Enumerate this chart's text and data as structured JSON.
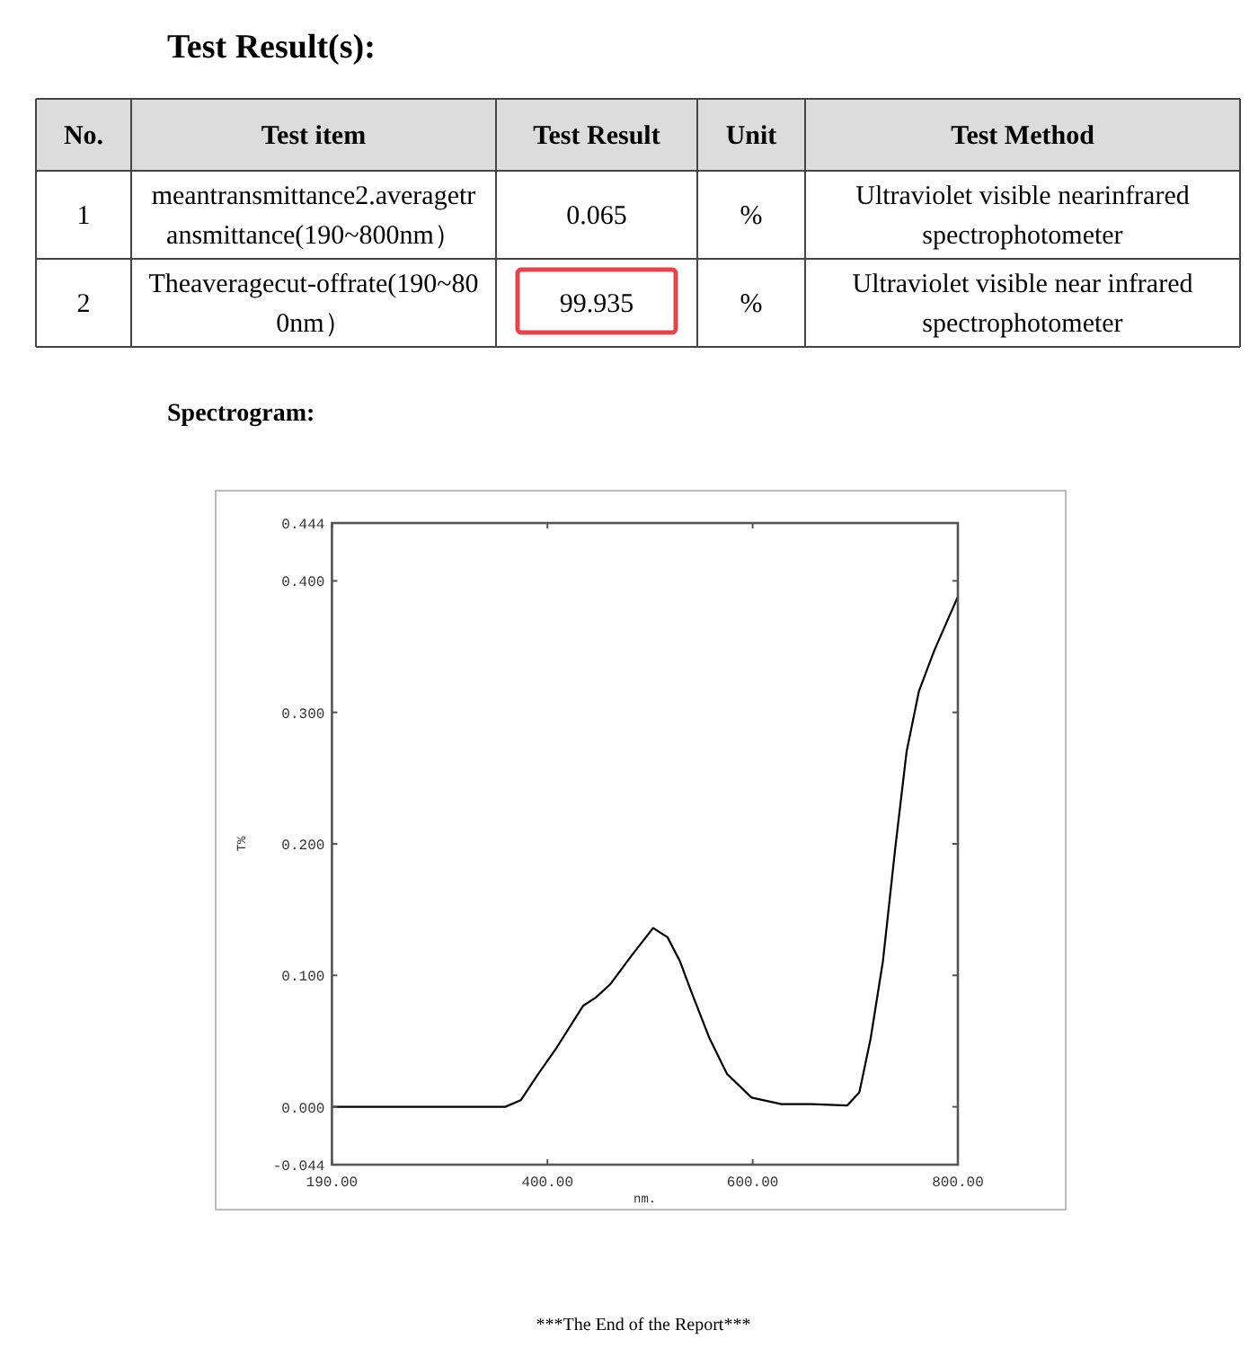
{
  "chart_data": [
    {
      "type": "other",
      "title": "Test Result(s):",
      "annotations": [
        "No.",
        "Test item",
        "Test Result",
        "Unit",
        "Test Method",
        "1",
        "meantransmittance2.averagetransmittance(190~800nm）",
        "0.065",
        "%",
        "Ultraviolet visible nearinfrared spectrophotometer",
        "2",
        "Theaveragecut-offrate(190~800nm）",
        "99.935",
        "%",
        "Ultraviolet visible near infrared spectrophotometer"
      ]
    },
    {
      "type": "line",
      "title": "Spectrogram:",
      "xlabel": "nm.",
      "ylabel": "T%",
      "xlim": [
        190,
        800
      ],
      "ylim": [
        -0.044,
        0.444
      ],
      "xticks": [
        {
          "value": 190,
          "label": "190.00"
        },
        {
          "value": 400,
          "label": "400.00"
        },
        {
          "value": 600,
          "label": "600.00"
        },
        {
          "value": 800,
          "label": "800.00"
        }
      ],
      "yticks": [
        {
          "value": -0.044,
          "label": "-0.044"
        },
        {
          "value": 0,
          "label": "0.000"
        },
        {
          "value": 0.1,
          "label": "0.100"
        },
        {
          "value": 0.2,
          "label": "0.200"
        },
        {
          "value": 0.3,
          "label": "0.300"
        },
        {
          "value": 0.4,
          "label": "0.400"
        },
        {
          "value": 0.444,
          "label": "0.444"
        }
      ],
      "grid": false,
      "marker": "none",
      "line_style": "solid",
      "annotations": [
        "***The End of the Report***"
      ],
      "series": [
        {
          "color": "#000000",
          "x": [
            190,
            228,
            327,
            359,
            374,
            391,
            409,
            435,
            447,
            461,
            482,
            503,
            517,
            529,
            540,
            558,
            575,
            599,
            628,
            657,
            692,
            704,
            715,
            727,
            739,
            750,
            762,
            777,
            791,
            800
          ],
          "values": [
            0,
            0,
            0,
            0,
            0.005,
            0.025,
            0.045,
            0.077,
            0.083,
            0.093,
            0.115,
            0.136,
            0.129,
            0.111,
            0.088,
            0.052,
            0.025,
            0.007,
            0.002,
            0.002,
            0.001,
            0.011,
            0.052,
            0.111,
            0.197,
            0.27,
            0.316,
            0.347,
            0.372,
            0.388
          ]
        }
      ]
    }
  ]
}
